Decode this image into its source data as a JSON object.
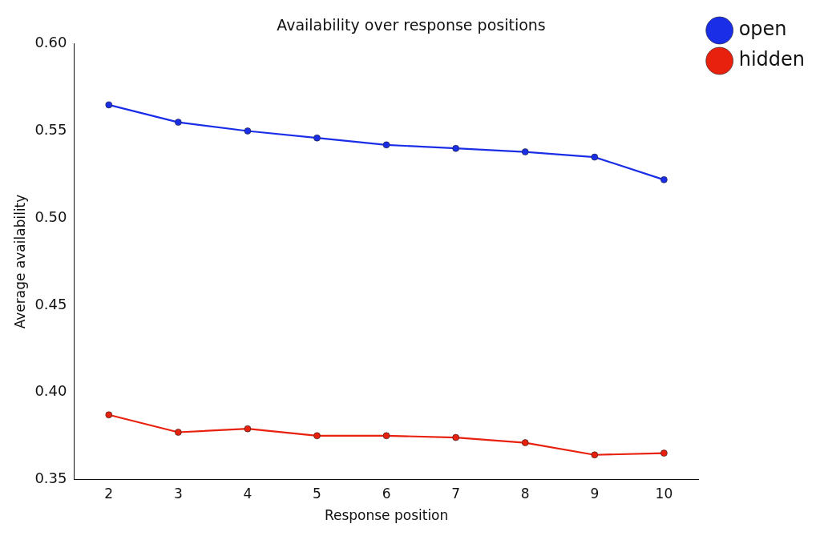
{
  "chart_data": {
    "type": "line",
    "title": "Availability over response positions",
    "xlabel": "Response position",
    "ylabel": "Average availability",
    "x": [
      2,
      3,
      4,
      5,
      6,
      7,
      8,
      9,
      10
    ],
    "series": [
      {
        "name": "open",
        "color": "#1a2ee8",
        "values": [
          0.565,
          0.555,
          0.55,
          0.546,
          0.542,
          0.54,
          0.538,
          0.535,
          0.522
        ]
      },
      {
        "name": "hidden",
        "color": "#e8200e",
        "values": [
          0.387,
          0.377,
          0.379,
          0.375,
          0.375,
          0.374,
          0.371,
          0.364,
          0.365
        ]
      }
    ],
    "xlim": [
      1.5,
      10.5
    ],
    "xticks": [
      2,
      3,
      4,
      5,
      6,
      7,
      8,
      9,
      10
    ],
    "ylim": [
      0.35,
      0.6
    ],
    "yticks": [
      {
        "value": 0.35,
        "label": "0.35"
      },
      {
        "value": 0.4,
        "label": "0.40"
      },
      {
        "value": 0.45,
        "label": "0.45"
      },
      {
        "value": 0.5,
        "label": "0.50"
      },
      {
        "value": 0.55,
        "label": "0.55"
      },
      {
        "value": 0.6,
        "label": "0.60"
      }
    ],
    "grid": false,
    "legend": "top right",
    "marker": "circle",
    "line_style": "solid"
  }
}
